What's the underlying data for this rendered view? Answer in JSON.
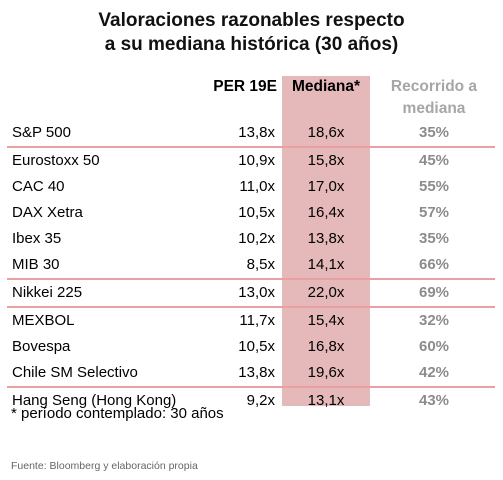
{
  "title": {
    "line1": "Valoraciones razonables respecto",
    "line2": "a su mediana histórica (30 años)"
  },
  "headers": {
    "per": "PER 19E",
    "median": "Mediana*",
    "range_line1": "Recorrido a",
    "range_line2": "mediana"
  },
  "rows": [
    {
      "name": "S&P 500",
      "per": "13,8x",
      "median": "18,6x",
      "range": "35%"
    },
    {
      "name": "Eurostoxx 50",
      "per": "10,9x",
      "median": "15,8x",
      "range": "45%"
    },
    {
      "name": "CAC 40",
      "per": "11,0x",
      "median": "17,0x",
      "range": "55%"
    },
    {
      "name": "DAX Xetra",
      "per": "10,5x",
      "median": "16,4x",
      "range": "57%"
    },
    {
      "name": "Ibex 35",
      "per": "10,2x",
      "median": "13,8x",
      "range": "35%"
    },
    {
      "name": "MIB 30",
      "per": "8,5x",
      "median": "14,1x",
      "range": "66%"
    },
    {
      "name": "Nikkei 225",
      "per": "13,0x",
      "median": "22,0x",
      "range": "69%"
    },
    {
      "name": "MEXBOL",
      "per": "11,7x",
      "median": "15,4x",
      "range": "32%"
    },
    {
      "name": "Bovespa",
      "per": "10,5x",
      "median": "16,8x",
      "range": "60%"
    },
    {
      "name": "Chile SM Selectivo",
      "per": "13,8x",
      "median": "19,6x",
      "range": "42%"
    },
    {
      "name": "Hang Seng (Hong Kong)",
      "per": "9,2x",
      "median": "13,1x",
      "range": "43%"
    }
  ],
  "note": "* período contemplado: 30 años",
  "source": "Fuente: Bloomberg y elaboración propia",
  "colors": {
    "median_band": "#e5b8b9",
    "separator": "#ea9fa2",
    "range_text": "#8c8c8c"
  }
}
